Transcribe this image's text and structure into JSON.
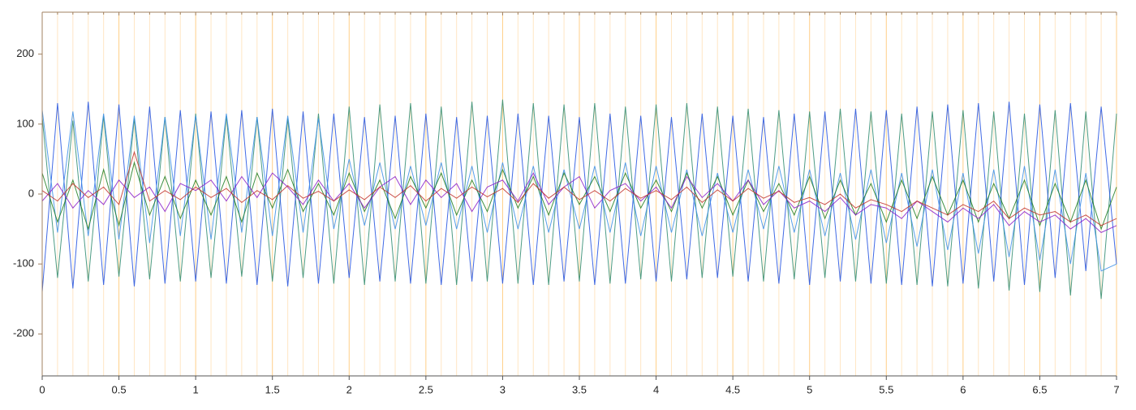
{
  "chart_data": {
    "type": "line",
    "x": [
      0,
      0.1,
      0.2,
      0.3,
      0.4,
      0.5,
      0.6,
      0.7,
      0.8,
      0.9,
      1,
      1.1,
      1.2,
      1.3,
      1.4,
      1.5,
      1.6,
      1.7,
      1.8,
      1.9,
      2,
      2.1,
      2.2,
      2.3,
      2.4,
      2.5,
      2.6,
      2.7,
      2.8,
      2.9,
      3,
      3.1,
      3.2,
      3.3,
      3.4,
      3.5,
      3.6,
      3.7,
      3.8,
      3.9,
      4,
      4.1,
      4.2,
      4.3,
      4.4,
      4.5,
      4.6,
      4.7,
      4.8,
      4.9,
      5,
      5.1,
      5.2,
      5.3,
      5.4,
      5.5,
      5.6,
      5.7,
      5.8,
      5.9,
      6,
      6.1,
      6.2,
      6.3,
      6.4,
      6.5,
      6.6,
      6.7,
      6.8,
      6.9,
      7
    ],
    "series": [
      {
        "color": "#2e8b6e",
        "values": [
          110,
          -120,
          105,
          -125,
          112,
          -118,
          108,
          -122,
          110,
          -125,
          115,
          -120,
          112,
          -118,
          110,
          -125,
          108,
          -120,
          115,
          -128,
          125,
          -130,
          128,
          -125,
          130,
          -128,
          125,
          -130,
          132,
          -125,
          135,
          -128,
          130,
          -130,
          128,
          -125,
          130,
          -128,
          125,
          -122,
          128,
          -125,
          130,
          -120,
          125,
          -118,
          122,
          -125,
          120,
          -122,
          118,
          -120,
          122,
          -125,
          118,
          -128,
          115,
          -130,
          118,
          -132,
          120,
          -135,
          118,
          -138,
          115,
          -140,
          120,
          -145,
          118,
          -150,
          115
        ]
      },
      {
        "color": "#2050e0",
        "values": [
          -140,
          130,
          -135,
          132,
          -130,
          128,
          -132,
          125,
          -128,
          120,
          -125,
          118,
          -128,
          120,
          -130,
          122,
          -132,
          118,
          -128,
          115,
          -120,
          110,
          -125,
          112,
          -128,
          115,
          -130,
          110,
          -125,
          112,
          -128,
          115,
          -130,
          112,
          -125,
          110,
          -130,
          115,
          -128,
          112,
          -125,
          110,
          -122,
          115,
          -120,
          112,
          -125,
          110,
          -128,
          115,
          -130,
          118,
          -125,
          122,
          -128,
          120,
          -130,
          125,
          -132,
          128,
          -128,
          130,
          -125,
          132,
          -130,
          128,
          -120,
          130,
          -110,
          125,
          -100
        ]
      },
      {
        "color": "#3a8ee6",
        "values": [
          120,
          -55,
          118,
          -60,
          115,
          -65,
          112,
          -70,
          110,
          -60,
          112,
          -65,
          115,
          -55,
          110,
          -60,
          112,
          -55,
          108,
          -50,
          50,
          -45,
          45,
          -50,
          40,
          -45,
          45,
          -50,
          40,
          -55,
          45,
          -50,
          40,
          -55,
          35,
          -50,
          40,
          -55,
          45,
          -60,
          40,
          -55,
          35,
          -60,
          30,
          -55,
          35,
          -50,
          40,
          -55,
          35,
          -60,
          30,
          -65,
          35,
          -70,
          30,
          -75,
          35,
          -80,
          30,
          -85,
          35,
          -90,
          40,
          -95,
          35,
          -100,
          30,
          -110,
          -100
        ]
      },
      {
        "color": "#1e7d1e",
        "values": [
          30,
          -40,
          20,
          -50,
          35,
          -45,
          45,
          -30,
          25,
          -35,
          20,
          -30,
          25,
          -40,
          30,
          -20,
          35,
          -25,
          15,
          -30,
          30,
          -25,
          20,
          -35,
          25,
          -20,
          30,
          -30,
          20,
          -25,
          35,
          -20,
          25,
          -30,
          30,
          -15,
          25,
          -25,
          30,
          -20,
          20,
          -25,
          30,
          -20,
          25,
          -30,
          20,
          -25,
          15,
          -30,
          25,
          -35,
          20,
          -30,
          15,
          -40,
          20,
          -35,
          25,
          -30,
          20,
          -40,
          15,
          -35,
          20,
          -45,
          15,
          -40,
          20,
          -50,
          10
        ]
      },
      {
        "color": "#8a1ec8",
        "values": [
          -10,
          15,
          -20,
          5,
          -15,
          20,
          -5,
          10,
          -25,
          15,
          5,
          20,
          -10,
          25,
          -5,
          30,
          10,
          -15,
          20,
          -10,
          15,
          -20,
          10,
          25,
          -15,
          20,
          -5,
          15,
          -25,
          10,
          20,
          -10,
          30,
          -15,
          10,
          25,
          -20,
          5,
          15,
          -10,
          10,
          -20,
          25,
          -5,
          15,
          -10,
          20,
          -15,
          5,
          -20,
          -10,
          -25,
          -5,
          -30,
          -15,
          -20,
          -35,
          -10,
          -25,
          -40,
          -20,
          -35,
          -15,
          -45,
          -25,
          -40,
          -30,
          -50,
          -35,
          -55,
          -45
        ]
      },
      {
        "color": "#c0302a",
        "values": [
          5,
          -10,
          15,
          -5,
          10,
          -15,
          60,
          -10,
          5,
          -8,
          10,
          -5,
          8,
          -12,
          5,
          -8,
          12,
          -6,
          4,
          -10,
          6,
          -8,
          10,
          -5,
          12,
          -10,
          8,
          -6,
          10,
          -4,
          8,
          -12,
          15,
          -6,
          10,
          -8,
          5,
          -10,
          8,
          -6,
          5,
          -8,
          10,
          -12,
          6,
          -10,
          8,
          -6,
          4,
          -12,
          -5,
          -15,
          0,
          -20,
          -8,
          -15,
          -25,
          -10,
          -20,
          -30,
          -15,
          -25,
          -10,
          -35,
          -20,
          -30,
          -25,
          -40,
          -30,
          -45,
          -35
        ]
      }
    ],
    "xlim": [
      0,
      7
    ],
    "ylim": [
      -260,
      260
    ],
    "xticks": [
      0,
      0.5,
      1,
      1.5,
      2,
      2.5,
      3,
      3.5,
      4,
      4.5,
      5,
      5.5,
      6,
      6.5,
      7
    ],
    "xminorticks": [
      0.1,
      0.2,
      0.3,
      0.4,
      0.6,
      0.7,
      0.8,
      0.9,
      1.1,
      1.2,
      1.3,
      1.4,
      1.6,
      1.7,
      1.8,
      1.9,
      2.1,
      2.2,
      2.3,
      2.4,
      2.6,
      2.7,
      2.8,
      2.9,
      3.1,
      3.2,
      3.3,
      3.4,
      3.6,
      3.7,
      3.8,
      3.9,
      4.1,
      4.2,
      4.3,
      4.4,
      4.6,
      4.7,
      4.8,
      4.9,
      5.1,
      5.2,
      5.3,
      5.4,
      5.6,
      5.7,
      5.8,
      5.9,
      6.1,
      6.2,
      6.3,
      6.4,
      6.6,
      6.7,
      6.8,
      6.9
    ],
    "yticks": [
      -200,
      -100,
      0,
      100,
      200
    ],
    "grid": true
  }
}
